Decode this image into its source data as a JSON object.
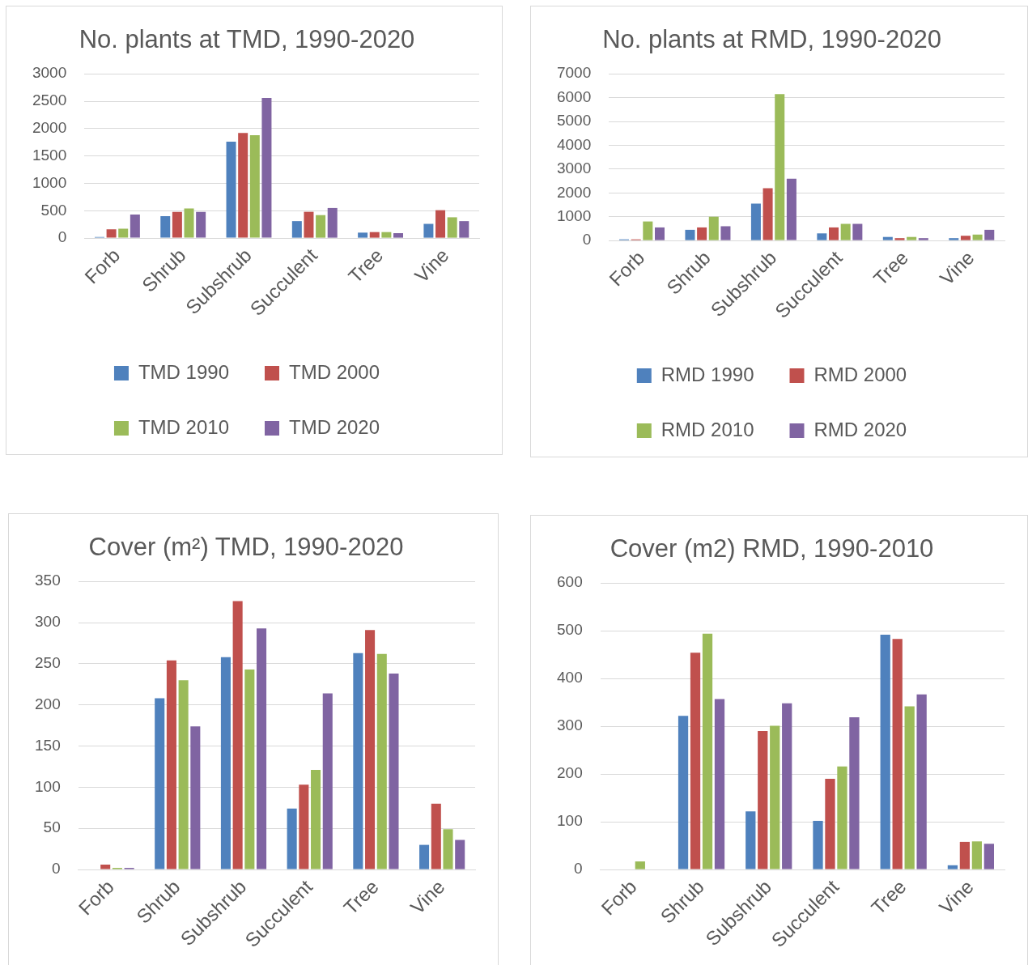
{
  "chart_data": [
    {
      "type": "bar",
      "title": "No. plants at TMD, 1990-2020",
      "categories": [
        "Forb",
        "Shrub",
        "Subshrub",
        "Succulent",
        "Tree",
        "Vine"
      ],
      "series": [
        {
          "name": "TMD 1990",
          "color": "#4f81bd",
          "values": [
            20,
            400,
            1760,
            310,
            100,
            260
          ]
        },
        {
          "name": "TMD 2000",
          "color": "#c0504d",
          "values": [
            160,
            480,
            1920,
            480,
            110,
            510
          ]
        },
        {
          "name": "TMD 2010",
          "color": "#9bbb59",
          "values": [
            170,
            540,
            1880,
            420,
            110,
            380
          ]
        },
        {
          "name": "TMD 2020",
          "color": "#8064a2",
          "values": [
            430,
            480,
            2560,
            550,
            90,
            310
          ]
        }
      ],
      "ylim": [
        0,
        3000
      ],
      "yticks": [
        0,
        500,
        1000,
        1500,
        2000,
        2500,
        3000
      ],
      "grid": "y",
      "legend": "bottom"
    },
    {
      "type": "bar",
      "title": "No. plants at RMD, 1990-2020",
      "categories": [
        "Forb",
        "Shrub",
        "Subshrub",
        "Succulent",
        "Tree",
        "Vine"
      ],
      "series": [
        {
          "name": "RMD 1990",
          "color": "#4f81bd",
          "values": [
            50,
            450,
            1550,
            300,
            150,
            100
          ]
        },
        {
          "name": "RMD 2000",
          "color": "#c0504d",
          "values": [
            50,
            550,
            2200,
            550,
            100,
            200
          ]
        },
        {
          "name": "RMD 2010",
          "color": "#9bbb59",
          "values": [
            800,
            1000,
            6150,
            700,
            150,
            250
          ]
        },
        {
          "name": "RMD 2020",
          "color": "#8064a2",
          "values": [
            550,
            600,
            2600,
            700,
            100,
            450
          ]
        }
      ],
      "ylim": [
        0,
        7000
      ],
      "yticks": [
        0,
        1000,
        2000,
        3000,
        4000,
        5000,
        6000,
        7000
      ],
      "grid": "y",
      "legend": "bottom"
    },
    {
      "type": "bar",
      "title": "Cover (m²) TMD, 1990-2020",
      "categories": [
        "Forb",
        "Shrub",
        "Subshrub",
        "Succulent",
        "Tree",
        "Vine"
      ],
      "series": [
        {
          "color": "#4f81bd",
          "values": [
            0,
            208,
            258,
            74,
            263,
            30
          ]
        },
        {
          "color": "#c0504d",
          "values": [
            6,
            254,
            326,
            103,
            291,
            80
          ]
        },
        {
          "color": "#9bbb59",
          "values": [
            2,
            230,
            243,
            121,
            262,
            49
          ]
        },
        {
          "color": "#8064a2",
          "values": [
            2,
            174,
            293,
            214,
            238,
            36
          ]
        }
      ],
      "ylim": [
        0,
        350
      ],
      "yticks": [
        0,
        50,
        100,
        150,
        200,
        250,
        300,
        350
      ],
      "grid": "y"
    },
    {
      "type": "bar",
      "title": "Cover (m2) RMD, 1990-2010",
      "categories": [
        "Forb",
        "Shrub",
        "Subshrub",
        "Succulent",
        "Tree",
        "Vine"
      ],
      "series": [
        {
          "color": "#4f81bd",
          "values": [
            0,
            322,
            122,
            102,
            492,
            9
          ]
        },
        {
          "color": "#c0504d",
          "values": [
            0,
            454,
            290,
            190,
            483,
            58
          ]
        },
        {
          "color": "#9bbb59",
          "values": [
            17,
            494,
            301,
            216,
            342,
            59
          ]
        },
        {
          "color": "#8064a2",
          "values": [
            null,
            357,
            348,
            319,
            367,
            54
          ]
        }
      ],
      "ylim": [
        0,
        600
      ],
      "yticks": [
        0,
        100,
        200,
        300,
        400,
        500,
        600
      ],
      "grid": "y"
    }
  ]
}
